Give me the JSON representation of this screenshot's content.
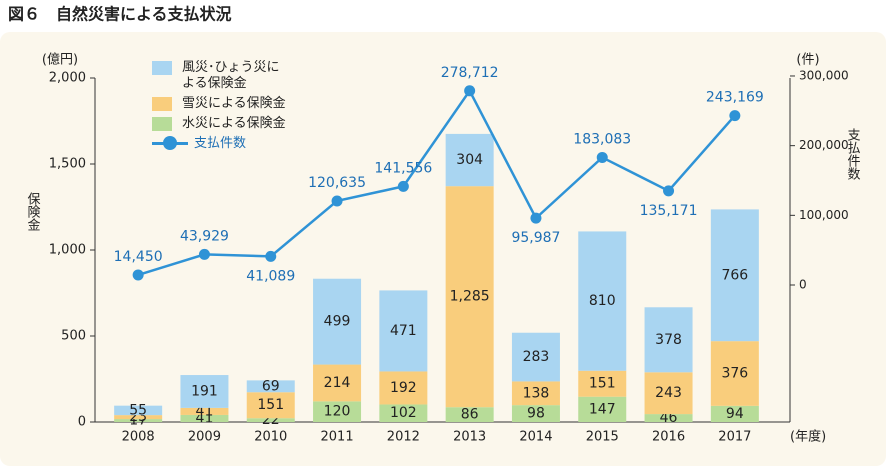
{
  "title": "図６　自然災害による支払状況",
  "chart_data": {
    "type": "bar-line",
    "y_unit": "(億円)",
    "y_label": "保険金",
    "y2_unit": "(件)",
    "y2_label": "支払件数",
    "x_unit": "(年度)",
    "categories": [
      "2008",
      "2009",
      "2010",
      "2011",
      "2012",
      "2013",
      "2014",
      "2015",
      "2016",
      "2017"
    ],
    "ylim": [
      0,
      2000
    ],
    "yticks": [
      0,
      500,
      {
        "value": 1000,
        "label": "1,000"
      },
      {
        "value": 1500,
        "label": "1,500"
      },
      {
        "value": 2000,
        "label": "2,000"
      }
    ],
    "y2lim": [
      -196600,
      297100
    ],
    "y2ticks": [
      0,
      {
        "value": 100000,
        "label": "100,000"
      },
      {
        "value": 200000,
        "label": "200,000"
      },
      {
        "value": 300000,
        "label": "300,000"
      }
    ],
    "series": [
      {
        "name": "水災による保険金",
        "color": "#b7dc98",
        "values": [
          17,
          41,
          22,
          120,
          102,
          86,
          98,
          147,
          46,
          94
        ]
      },
      {
        "name": "雪災による保険金",
        "color": "#f9cd7c",
        "values": [
          23,
          41,
          151,
          214,
          192,
          1285,
          138,
          151,
          243,
          376
        ],
        "value_labels": [
          "23",
          "41",
          "151",
          "214",
          "192",
          "1,285",
          "138",
          "151",
          "243",
          "376"
        ]
      },
      {
        "name": "風災･ひょう災による保険金",
        "color": "#a9d5f1",
        "values": [
          55,
          191,
          69,
          499,
          471,
          304,
          283,
          810,
          378,
          766
        ]
      },
      {
        "name": "支払件数",
        "color": "#2f93d6",
        "axis": "y2",
        "type": "line",
        "values": [
          14450,
          43929,
          41089,
          120635,
          141556,
          278712,
          95987,
          183083,
          135171,
          243169
        ],
        "value_labels": [
          "14,450",
          "43,929",
          "41,089",
          "120,635",
          "141,556",
          "278,712",
          "95,987",
          "183,083",
          "135,171",
          "243,169"
        ]
      }
    ]
  }
}
